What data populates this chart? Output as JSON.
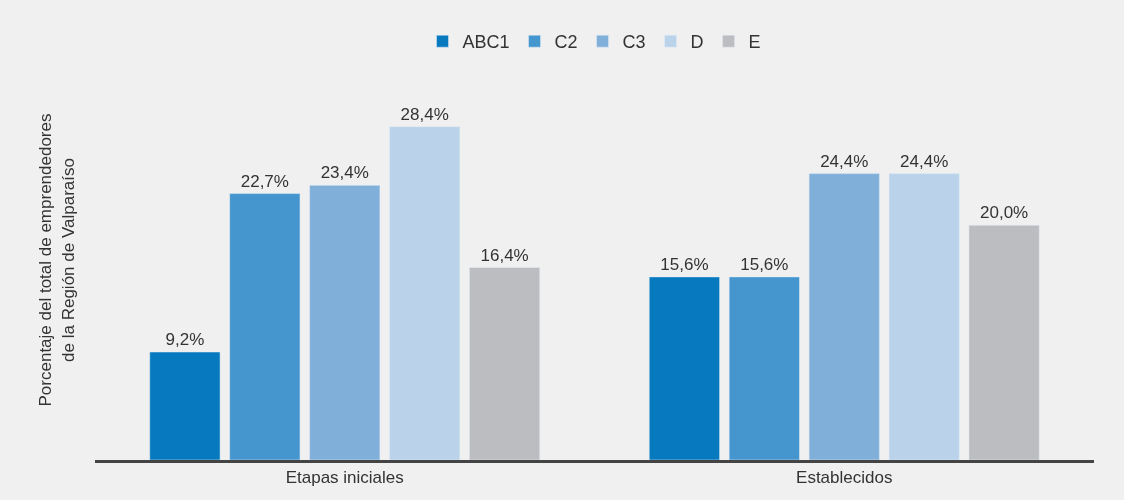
{
  "chart_data": {
    "type": "bar",
    "ylabel": "Porcentaje del total de emprendedores\nde la Región de Valparaíso",
    "categories": [
      "Etapas iniciales",
      "Establecidos"
    ],
    "series": [
      {
        "name": "ABC1",
        "color": "#0779bf",
        "values": [
          9.2,
          15.6
        ],
        "value_labels": [
          "9,2%",
          "15,6%"
        ]
      },
      {
        "name": "C2",
        "color": "#4596cf",
        "values": [
          22.7,
          15.6
        ],
        "value_labels": [
          "22,7%",
          "15,6%"
        ]
      },
      {
        "name": "C3",
        "color": "#80b0da",
        "values": [
          23.4,
          24.4
        ],
        "value_labels": [
          "23,4%",
          "24,4%"
        ]
      },
      {
        "name": "D",
        "color": "#bad3ea",
        "values": [
          28.4,
          24.4
        ],
        "value_labels": [
          "28,4%",
          "24,4%"
        ]
      },
      {
        "name": "E",
        "color": "#bcbdc0",
        "values": [
          16.4,
          20.0
        ],
        "value_labels": [
          "16,4%",
          "20,0%"
        ]
      }
    ],
    "legend": "top",
    "grid": false
  }
}
